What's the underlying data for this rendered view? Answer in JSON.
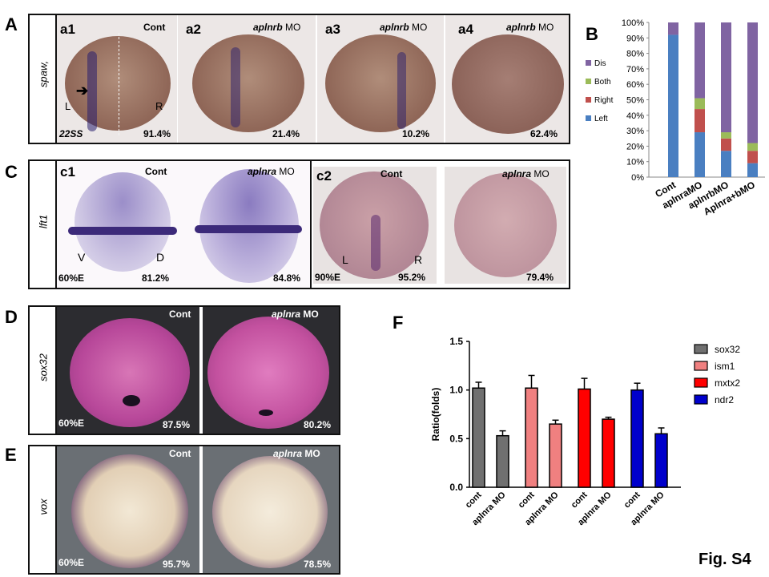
{
  "figure_label": "Fig. S4",
  "panelA": {
    "letter": "A",
    "gene": "spaw,",
    "stage": "22SS",
    "arrow_label_left": "L",
    "arrow_label_right": "R",
    "tiles": [
      {
        "id": "a1",
        "condition": "Cont",
        "pct": "91.4%"
      },
      {
        "id": "a2",
        "condition_gene": "aplnrb",
        "condition_suffix": "MO",
        "pct": "21.4%"
      },
      {
        "id": "a3",
        "condition_gene": "aplnrb",
        "condition_suffix": "MO",
        "pct": "10.2%"
      },
      {
        "id": "a4",
        "condition_gene": "aplnrb",
        "condition_suffix": "MO",
        "pct": "62.4%"
      }
    ]
  },
  "panelB": {
    "letter": "B",
    "legend": [
      "Dis",
      "Both",
      "Right",
      "Left"
    ],
    "colors": {
      "Left": "#4a7fc1",
      "Right": "#c0504d",
      "Both": "#9bbb59",
      "Dis": "#8064a2"
    }
  },
  "panelC": {
    "letter": "C",
    "gene": "lft1",
    "c1": {
      "id": "c1",
      "cont": "Cont",
      "mo_gene": "aplnra",
      "mo_suffix": "MO",
      "stage": "60%E",
      "v": "V",
      "d": "D",
      "pct_cont": "81.2%",
      "pct_mo": "84.8%"
    },
    "c2": {
      "id": "c2",
      "cont": "Cont",
      "mo_gene": "aplnra",
      "mo_suffix": "MO",
      "stage": "90%E",
      "l": "L",
      "r": "R",
      "pct_cont": "95.2%",
      "pct_mo": "79.4%"
    }
  },
  "panelD": {
    "letter": "D",
    "gene": "sox32",
    "cont": "Cont",
    "mo_gene": "aplnra",
    "mo_suffix": "MO",
    "stage": "60%E",
    "pct_cont": "87.5%",
    "pct_mo": "80.2%"
  },
  "panelE": {
    "letter": "E",
    "gene": "vox",
    "cont": "Cont",
    "mo_gene": "aplnra",
    "mo_suffix": "MO",
    "stage": "60%E",
    "pct_cont": "95.7%",
    "pct_mo": "78.5%"
  },
  "panelF": {
    "letter": "F"
  },
  "chart_data": [
    {
      "type": "bar",
      "stacked": true,
      "categories": [
        "Cont",
        "aplnraMO",
        "aplnrbMO",
        "Aplnra+bMO"
      ],
      "series": [
        {
          "name": "Left",
          "values": [
            92,
            29,
            17,
            9
          ]
        },
        {
          "name": "Right",
          "values": [
            0,
            15,
            8,
            8
          ]
        },
        {
          "name": "Both",
          "values": [
            0,
            7,
            4,
            5
          ]
        },
        {
          "name": "Dis",
          "values": [
            8,
            49,
            71,
            78
          ]
        }
      ],
      "yticks": [
        "0%",
        "10%",
        "20%",
        "30%",
        "40%",
        "50%",
        "60%",
        "70%",
        "80%",
        "90%",
        "100%"
      ],
      "ylim": [
        0,
        100
      ],
      "legend_position": "left"
    },
    {
      "type": "bar",
      "categories": [
        "cont",
        "aplnra MO"
      ],
      "ylabel": "Ratio(folds)",
      "ylim": [
        0,
        1.5
      ],
      "yticks": [
        "0.0",
        "0.5",
        "1.0",
        "1.5"
      ],
      "series": [
        {
          "name": "sox32",
          "color": "#707070",
          "values": [
            1.02,
            0.53
          ],
          "errors": [
            0.06,
            0.05
          ]
        },
        {
          "name": "ism1",
          "color": "#f08080",
          "values": [
            1.02,
            0.65
          ],
          "errors": [
            0.13,
            0.04
          ]
        },
        {
          "name": "mxtx2",
          "color": "#ff0000",
          "values": [
            1.01,
            0.7
          ],
          "errors": [
            0.11,
            0.02
          ]
        },
        {
          "name": "ndr2",
          "color": "#0000cc",
          "values": [
            1.0,
            0.55
          ],
          "errors": [
            0.07,
            0.06
          ]
        }
      ],
      "legend_position": "top-right"
    }
  ]
}
